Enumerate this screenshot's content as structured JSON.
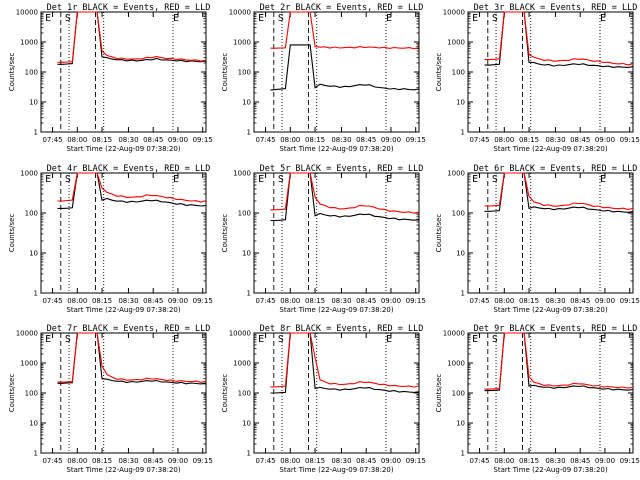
{
  "chart_data": [
    {
      "type": "line",
      "title": "Det 1r BLACK = Events, RED = LLD",
      "xlabel": "Start Time (22-Aug-09 07:38:20)",
      "ylabel": "Counts/sec",
      "ylim": [
        1,
        10000
      ],
      "yscale": "log",
      "xtick_labels": [
        "07:45",
        "08:00",
        "08:15",
        "08:30",
        "08:45",
        "09:00",
        "09:15"
      ],
      "ytick_labels": [
        "1",
        "10",
        "100",
        "1000",
        "10000"
      ],
      "markers": [
        "E",
        "S",
        "E"
      ],
      "series": [
        {
          "color": "#000000",
          "values": [
            180,
            180,
            185,
            190,
            10000,
            10000,
            10000,
            10000,
            10000,
            320,
            290,
            270,
            260,
            250,
            245,
            240,
            240,
            245,
            255,
            265,
            270,
            260,
            250,
            245,
            240,
            235,
            230,
            230,
            225,
            225,
            225
          ]
        },
        {
          "color": "#ff0000",
          "values": [
            210,
            210,
            215,
            220,
            10000,
            10000,
            10000,
            10000,
            10000,
            500,
            360,
            310,
            295,
            280,
            275,
            270,
            270,
            280,
            295,
            310,
            320,
            300,
            285,
            275,
            270,
            265,
            255,
            250,
            245,
            240,
            240
          ]
        }
      ]
    },
    {
      "type": "line",
      "title": "Det 2r BLACK = Events, RED = LLD",
      "xlabel": "Start Time (22-Aug-09 07:38:20)",
      "ylabel": "Counts/sec",
      "ylim": [
        1,
        10000
      ],
      "yscale": "log",
      "xtick_labels": [
        "07:45",
        "08:00",
        "08:15",
        "08:30",
        "08:45",
        "09:00",
        "09:15"
      ],
      "ytick_labels": [
        "1",
        "10",
        "100",
        "1000",
        "10000"
      ],
      "markers": [
        "E",
        "S",
        "E"
      ],
      "series": [
        {
          "color": "#000000",
          "values": [
            25,
            26,
            27,
            28,
            800,
            800,
            800,
            800,
            800,
            30,
            38,
            36,
            34,
            33,
            32,
            32,
            33,
            35,
            37,
            38,
            36,
            33,
            30,
            29,
            28,
            27,
            27,
            27,
            26,
            26,
            26
          ]
        },
        {
          "color": "#ff0000",
          "values": [
            620,
            620,
            630,
            640,
            10000,
            10000,
            10000,
            10000,
            10000,
            700,
            680,
            670,
            660,
            655,
            650,
            650,
            655,
            660,
            670,
            675,
            670,
            660,
            650,
            640,
            640,
            635,
            630,
            630,
            625,
            625,
            620
          ]
        }
      ]
    },
    {
      "type": "line",
      "title": "Det 3r BLACK = Events, RED = LLD",
      "xlabel": "Start Time (22-Aug-09 07:38:20)",
      "ylabel": "Counts/sec",
      "ylim": [
        1,
        10000
      ],
      "yscale": "log",
      "xtick_labels": [
        "07:45",
        "08:00",
        "08:15",
        "08:30",
        "08:45",
        "09:00",
        "09:15"
      ],
      "ytick_labels": [
        "1",
        "10",
        "100",
        "1000",
        "10000"
      ],
      "markers": [
        "E",
        "S",
        "E"
      ],
      "series": [
        {
          "color": "#000000",
          "values": [
            170,
            170,
            175,
            180,
            10000,
            10000,
            10000,
            10000,
            10000,
            210,
            200,
            185,
            175,
            170,
            165,
            165,
            168,
            175,
            182,
            185,
            180,
            172,
            165,
            160,
            155,
            150,
            148,
            146,
            145,
            145,
            145
          ]
        },
        {
          "color": "#ff0000",
          "values": [
            260,
            260,
            265,
            275,
            10000,
            10000,
            10000,
            10000,
            10000,
            380,
            310,
            270,
            255,
            245,
            235,
            235,
            240,
            250,
            265,
            275,
            265,
            250,
            235,
            225,
            215,
            205,
            195,
            190,
            185,
            180,
            180
          ]
        }
      ]
    },
    {
      "type": "line",
      "title": "Det 4r BLACK = Events, RED = LLD",
      "xlabel": "Start Time (22-Aug-09 07:38:20)",
      "ylabel": "Counts/sec",
      "ylim": [
        1,
        1000
      ],
      "yscale": "log",
      "xtick_labels": [
        "07:45",
        "08:00",
        "08:15",
        "08:30",
        "08:45",
        "09:00",
        "09:15"
      ],
      "ytick_labels": [
        "1",
        "10",
        "100",
        "1000"
      ],
      "markers": [
        "E",
        "S",
        "E"
      ],
      "series": [
        {
          "color": "#000000",
          "values": [
            130,
            130,
            132,
            135,
            1000,
            1000,
            1000,
            1000,
            1000,
            210,
            225,
            210,
            200,
            195,
            190,
            190,
            192,
            198,
            205,
            208,
            202,
            195,
            185,
            178,
            170,
            165,
            160,
            158,
            155,
            152,
            150
          ]
        },
        {
          "color": "#ff0000",
          "values": [
            200,
            200,
            205,
            210,
            1000,
            1000,
            1000,
            1000,
            1000,
            420,
            330,
            290,
            270,
            260,
            250,
            248,
            252,
            262,
            275,
            280,
            270,
            258,
            245,
            235,
            225,
            215,
            208,
            202,
            198,
            195,
            195
          ]
        }
      ]
    },
    {
      "type": "line",
      "title": "Det 5r BLACK = Events, RED = LLD",
      "xlabel": "Start Time (22-Aug-09 07:38:20)",
      "ylabel": "Counts/sec",
      "ylim": [
        1,
        1000
      ],
      "yscale": "log",
      "xtick_labels": [
        "07:45",
        "08:00",
        "08:15",
        "08:30",
        "08:45",
        "09:00",
        "09:15"
      ],
      "ytick_labels": [
        "1",
        "10",
        "100",
        "1000"
      ],
      "markers": [
        "E",
        "S",
        "E"
      ],
      "series": [
        {
          "color": "#000000",
          "values": [
            65,
            65,
            66,
            68,
            1000,
            1000,
            1000,
            1000,
            1000,
            85,
            95,
            90,
            86,
            84,
            82,
            82,
            84,
            88,
            92,
            94,
            90,
            85,
            80,
            77,
            74,
            72,
            70,
            69,
            68,
            67,
            66
          ]
        },
        {
          "color": "#ff0000",
          "values": [
            120,
            120,
            122,
            125,
            1000,
            1000,
            1000,
            1000,
            1000,
            250,
            170,
            150,
            140,
            132,
            128,
            128,
            132,
            140,
            150,
            155,
            148,
            138,
            128,
            120,
            115,
            110,
            108,
            105,
            104,
            103,
            102
          ]
        }
      ]
    },
    {
      "type": "line",
      "title": "Det 6r BLACK = Events, RED = LLD",
      "xlabel": "Start Time (22-Aug-09 07:38:20)",
      "ylabel": "Counts/sec",
      "ylim": [
        1,
        1000
      ],
      "yscale": "log",
      "xtick_labels": [
        "07:45",
        "08:00",
        "08:15",
        "08:30",
        "08:45",
        "09:00",
        "09:15"
      ],
      "ytick_labels": [
        "1",
        "10",
        "100",
        "1000"
      ],
      "markers": [
        "E",
        "S",
        "E"
      ],
      "series": [
        {
          "color": "#000000",
          "values": [
            110,
            110,
            112,
            115,
            1000,
            1000,
            1000,
            1000,
            1000,
            130,
            140,
            135,
            130,
            127,
            125,
            125,
            127,
            132,
            138,
            140,
            135,
            128,
            122,
            118,
            115,
            112,
            110,
            108,
            107,
            106,
            105
          ]
        },
        {
          "color": "#ff0000",
          "values": [
            150,
            150,
            152,
            155,
            1000,
            1000,
            1000,
            1000,
            1000,
            260,
            190,
            170,
            160,
            155,
            150,
            150,
            154,
            162,
            172,
            178,
            170,
            160,
            150,
            145,
            140,
            135,
            132,
            130,
            128,
            127,
            125
          ]
        }
      ]
    },
    {
      "type": "line",
      "title": "Det 7r BLACK = Events, RED = LLD",
      "xlabel": "Start Time (22-Aug-09 07:38:20)",
      "ylabel": "Counts/sec",
      "ylim": [
        1,
        10000
      ],
      "yscale": "log",
      "xtick_labels": [
        "07:45",
        "08:00",
        "08:15",
        "08:30",
        "08:45",
        "09:00",
        "09:15"
      ],
      "ytick_labels": [
        "1",
        "10",
        "100",
        "1000",
        "10000"
      ],
      "markers": [
        "E",
        "S",
        "E"
      ],
      "series": [
        {
          "color": "#000000",
          "values": [
            210,
            210,
            215,
            220,
            10000,
            10000,
            10000,
            10000,
            10000,
            300,
            280,
            262,
            250,
            240,
            235,
            232,
            235,
            242,
            252,
            258,
            250,
            240,
            232,
            225,
            220,
            215,
            212,
            210,
            208,
            206,
            205
          ]
        },
        {
          "color": "#ff0000",
          "values": [
            230,
            230,
            235,
            240,
            10000,
            10000,
            10000,
            10000,
            10000,
            800,
            420,
            330,
            300,
            285,
            275,
            272,
            276,
            285,
            298,
            305,
            295,
            282,
            272,
            262,
            255,
            250,
            245,
            242,
            240,
            238,
            236
          ]
        }
      ]
    },
    {
      "type": "line",
      "title": "Det 8r BLACK = Events, RED = LLD",
      "xlabel": "Start Time (22-Aug-09 07:38:20)",
      "ylabel": "Counts/sec",
      "ylim": [
        1,
        10000
      ],
      "yscale": "log",
      "xtick_labels": [
        "07:45",
        "08:00",
        "08:15",
        "08:30",
        "08:45",
        "09:00",
        "09:15"
      ],
      "ytick_labels": [
        "1",
        "10",
        "100",
        "1000",
        "10000"
      ],
      "markers": [
        "E",
        "S",
        "E"
      ],
      "series": [
        {
          "color": "#000000",
          "values": [
            100,
            100,
            102,
            105,
            10000,
            10000,
            10000,
            10000,
            10000,
            140,
            150,
            142,
            136,
            132,
            130,
            130,
            133,
            140,
            148,
            152,
            145,
            135,
            128,
            122,
            118,
            115,
            112,
            110,
            108,
            107,
            106
          ]
        },
        {
          "color": "#ff0000",
          "values": [
            160,
            160,
            165,
            170,
            10000,
            10000,
            10000,
            10000,
            10000,
            1500,
            280,
            230,
            210,
            200,
            195,
            195,
            200,
            212,
            228,
            235,
            225,
            210,
            198,
            188,
            180,
            175,
            170,
            168,
            166,
            165,
            165
          ]
        }
      ]
    },
    {
      "type": "line",
      "title": "Det 9r BLACK = Events, RED = LLD",
      "xlabel": "Start Time (22-Aug-09 07:38:20)",
      "ylabel": "Counts/sec",
      "ylim": [
        1,
        10000
      ],
      "yscale": "log",
      "xtick_labels": [
        "07:45",
        "08:00",
        "08:15",
        "08:30",
        "08:45",
        "09:00",
        "09:15"
      ],
      "ytick_labels": [
        "1",
        "10",
        "100",
        "1000",
        "10000"
      ],
      "markers": [
        "E",
        "S",
        "E"
      ],
      "series": [
        {
          "color": "#000000",
          "values": [
            120,
            120,
            122,
            125,
            10000,
            10000,
            10000,
            10000,
            10000,
            170,
            175,
            165,
            158,
            153,
            150,
            150,
            153,
            160,
            168,
            172,
            165,
            155,
            148,
            142,
            138,
            135,
            132,
            130,
            128,
            127,
            126
          ]
        },
        {
          "color": "#ff0000",
          "values": [
            135,
            135,
            138,
            140,
            10000,
            10000,
            10000,
            10000,
            10000,
            350,
            230,
            200,
            188,
            180,
            176,
            176,
            180,
            190,
            202,
            208,
            198,
            185,
            176,
            170,
            165,
            160,
            157,
            155,
            153,
            152,
            150
          ]
        }
      ]
    }
  ]
}
